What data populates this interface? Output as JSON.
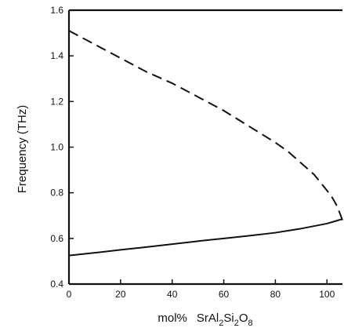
{
  "chart_data": {
    "type": "line",
    "title": "",
    "ylabel": "Frequency (THz)",
    "xlabel": {
      "prefix": "mol%",
      "formula": [
        {
          "text": "SrAl",
          "sub": false
        },
        {
          "text": "2",
          "sub": true
        },
        {
          "text": "Si",
          "sub": false
        },
        {
          "text": "2",
          "sub": true
        },
        {
          "text": "O",
          "sub": false
        },
        {
          "text": "8",
          "sub": true
        }
      ]
    },
    "xlim": [
      0,
      106
    ],
    "ylim": [
      0.4,
      1.6
    ],
    "xticks": [
      0,
      20,
      40,
      60,
      80,
      100
    ],
    "xtick_labels": [
      "0",
      "20",
      "40",
      "60",
      "80",
      "100"
    ],
    "yticks": [
      0.4,
      0.6,
      0.8,
      1.0,
      1.2,
      1.4,
      1.6
    ],
    "ytick_labels": [
      "0.4",
      "0.6",
      "0.8",
      "1.0",
      "1.2",
      "1.4",
      "1.6"
    ],
    "grid": false,
    "legend": false,
    "series": [
      {
        "style": "dashed",
        "color": "#111111",
        "x": [
          0,
          10,
          20,
          30,
          40,
          50,
          60,
          70,
          80,
          85,
          90,
          95,
          100,
          102,
          104,
          106
        ],
        "y": [
          1.51,
          1.45,
          1.39,
          1.33,
          1.28,
          1.22,
          1.16,
          1.09,
          1.02,
          0.98,
          0.93,
          0.88,
          0.81,
          0.78,
          0.74,
          0.68
        ]
      },
      {
        "style": "solid",
        "color": "#111111",
        "x": [
          0,
          10,
          20,
          30,
          40,
          50,
          60,
          70,
          80,
          90,
          100,
          106
        ],
        "y": [
          0.525,
          0.537,
          0.55,
          0.562,
          0.575,
          0.588,
          0.6,
          0.612,
          0.625,
          0.643,
          0.665,
          0.685
        ]
      }
    ]
  }
}
